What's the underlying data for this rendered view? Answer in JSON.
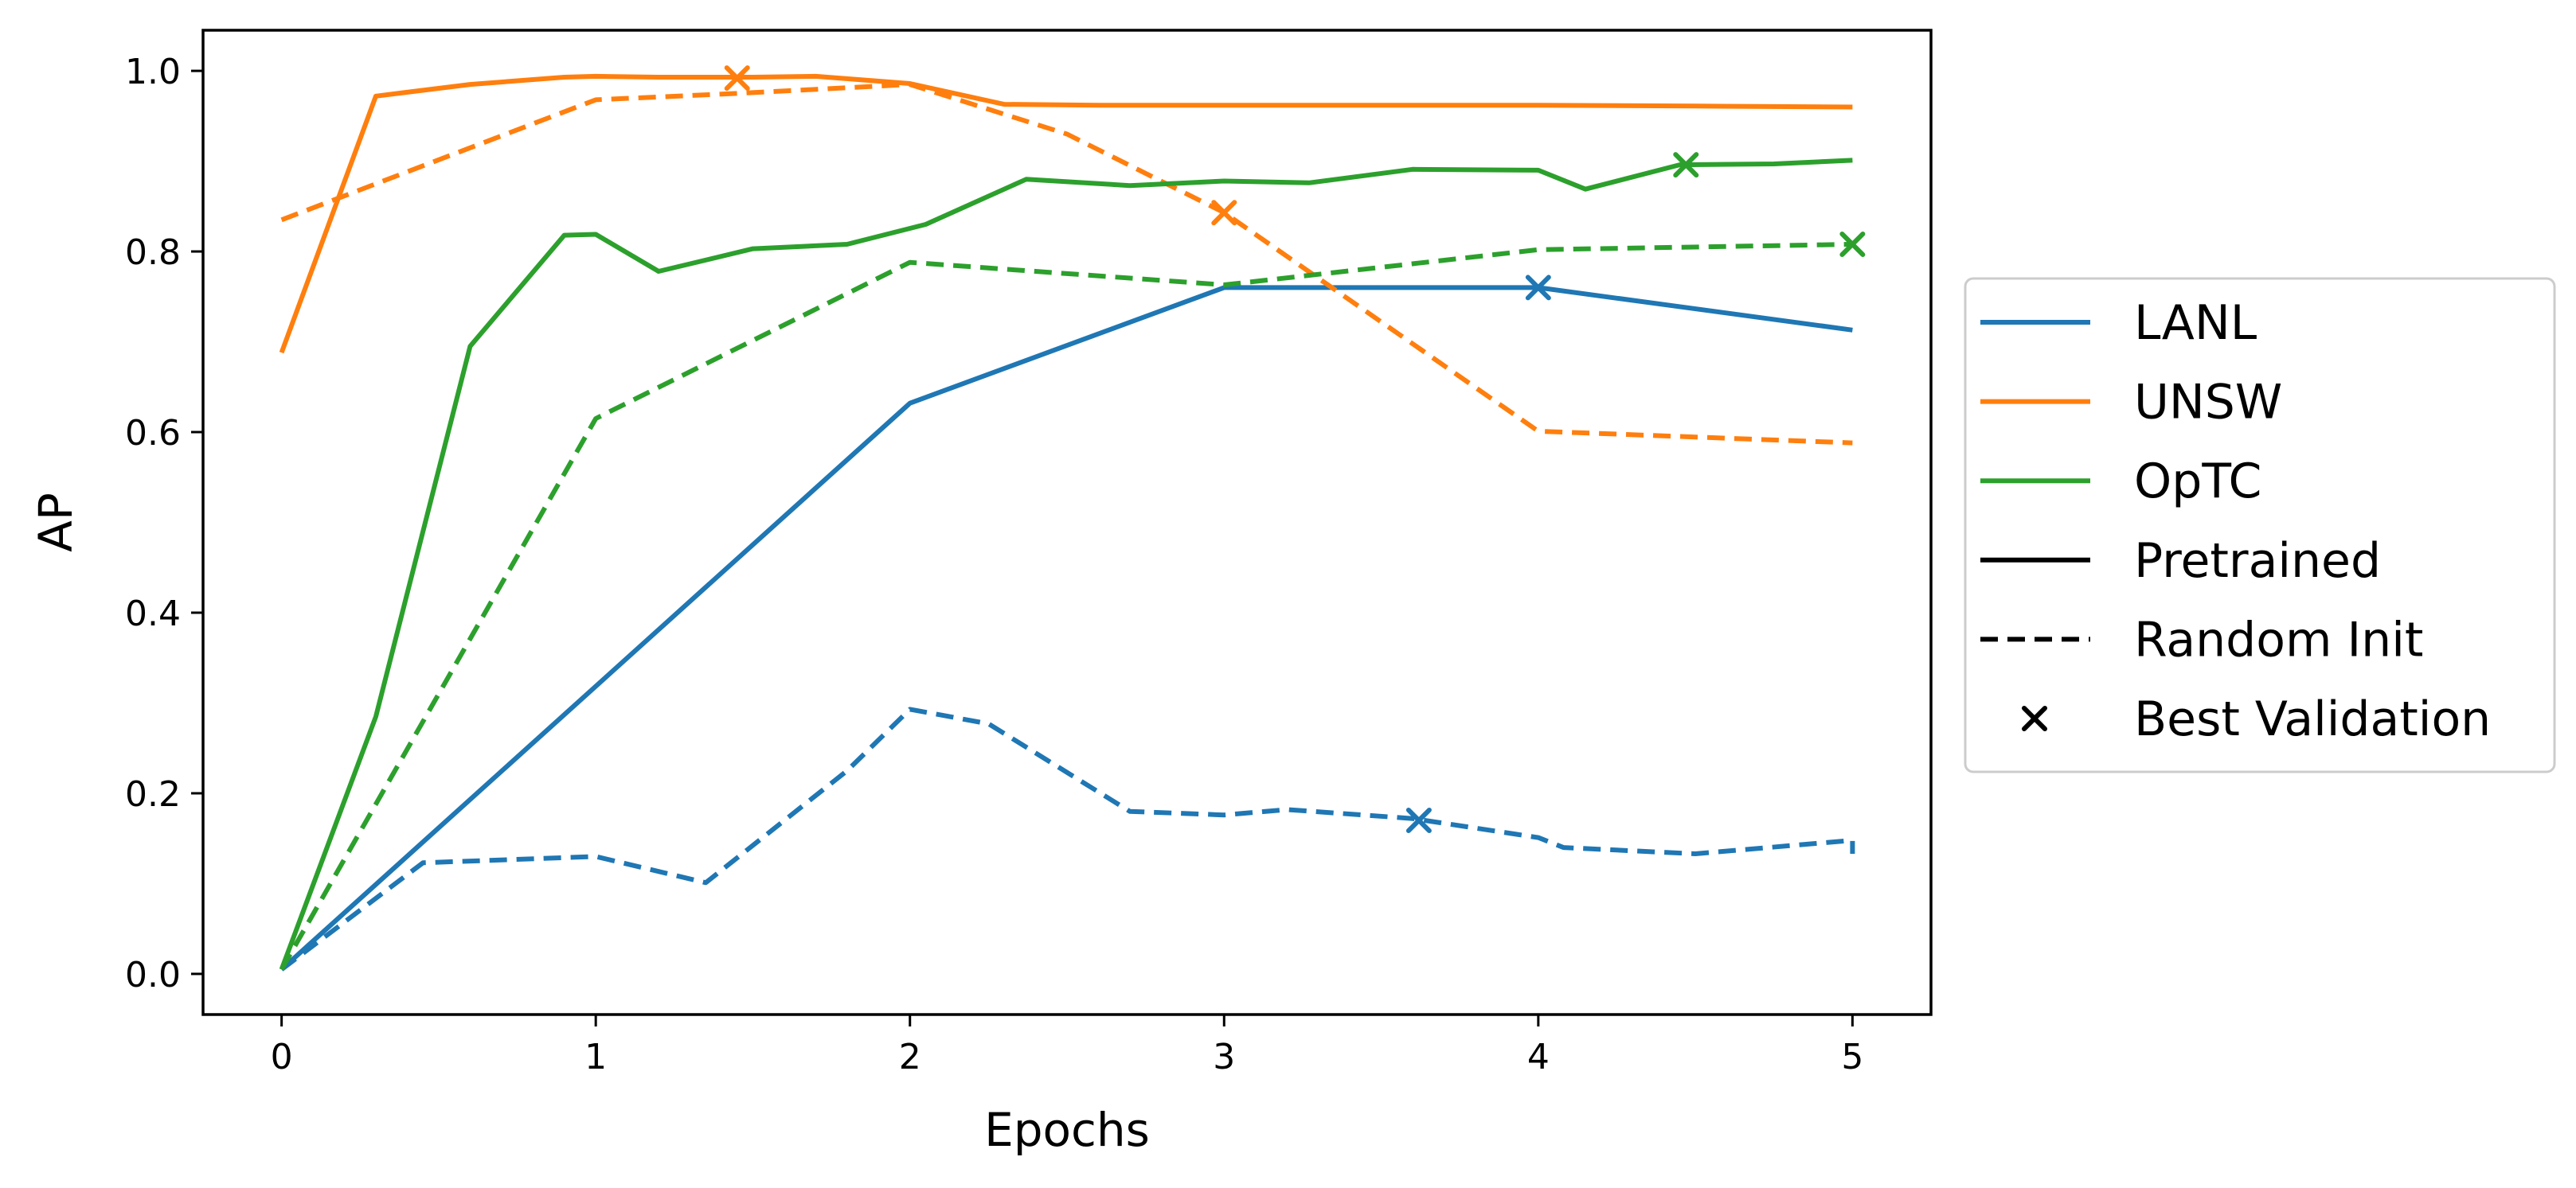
{
  "chart_data": {
    "type": "line",
    "xlabel": "Epochs",
    "ylabel": "AP",
    "xlim": [
      -0.25,
      5.25
    ],
    "ylim": [
      -0.045,
      1.045
    ],
    "x_ticks": [
      0,
      1,
      2,
      3,
      4,
      5
    ],
    "x_tick_labels": [
      "0",
      "1",
      "2",
      "3",
      "4",
      "5"
    ],
    "y_ticks": [
      0.0,
      0.2,
      0.4,
      0.6,
      0.8,
      1.0
    ],
    "y_tick_labels": [
      "0.0",
      "0.2",
      "0.4",
      "0.6",
      "0.8",
      "1.0"
    ],
    "grid": false,
    "legend_position": "outside-right",
    "series": [
      {
        "name": "LANL",
        "style": "solid",
        "color": "#1f77b4",
        "x": [
          0,
          2,
          3,
          4,
          5
        ],
        "y": [
          0.005,
          0.632,
          0.76,
          0.76,
          0.713
        ],
        "best": [
          4.0,
          0.76
        ]
      },
      {
        "style": "dashed",
        "color": "#1f77b4",
        "x": [
          0,
          0.45,
          1.0,
          1.35,
          1.8,
          2.0,
          2.25,
          2.7,
          3.0,
          3.2,
          3.6,
          4.0,
          4.08,
          4.5,
          5.0,
          5.0
        ],
        "y": [
          0.005,
          0.123,
          0.13,
          0.101,
          0.225,
          0.293,
          0.277,
          0.18,
          0.176,
          0.182,
          0.172,
          0.151,
          0.14,
          0.133,
          0.148,
          0.133
        ],
        "best": [
          3.62,
          0.17
        ]
      },
      {
        "name": "UNSW",
        "style": "solid",
        "color": "#ff7f0e",
        "x": [
          0,
          0.3,
          0.6,
          0.9,
          1.0,
          1.2,
          1.5,
          1.7,
          2.0,
          2.3,
          2.6,
          3.0,
          3.5,
          4.0,
          4.5,
          5.0
        ],
        "y": [
          0.688,
          0.972,
          0.985,
          0.993,
          0.994,
          0.993,
          0.993,
          0.994,
          0.986,
          0.963,
          0.962,
          0.962,
          0.962,
          0.962,
          0.961,
          0.96
        ],
        "best": [
          1.45,
          0.992
        ]
      },
      {
        "style": "dashed",
        "color": "#ff7f0e",
        "x": [
          0,
          1.0,
          1.45,
          2.0,
          2.5,
          3.0,
          4.0,
          5.0
        ],
        "y": [
          0.835,
          0.968,
          0.975,
          0.985,
          0.93,
          0.843,
          0.601,
          0.588
        ],
        "best": [
          3.0,
          0.843
        ]
      },
      {
        "name": "OpTC",
        "style": "solid",
        "color": "#2ca02c",
        "x": [
          0,
          0.3,
          0.6,
          0.9,
          1.0,
          1.2,
          1.5,
          1.8,
          2.05,
          2.37,
          2.7,
          3.0,
          3.27,
          3.6,
          4.0,
          4.15,
          4.45,
          4.75,
          5.0
        ],
        "y": [
          0.005,
          0.285,
          0.695,
          0.818,
          0.819,
          0.778,
          0.803,
          0.808,
          0.83,
          0.88,
          0.873,
          0.878,
          0.876,
          0.891,
          0.89,
          0.869,
          0.896,
          0.897,
          0.901
        ],
        "best": [
          4.47,
          0.896
        ]
      },
      {
        "style": "dashed",
        "color": "#2ca02c",
        "x": [
          0,
          1.0,
          2.0,
          3.0,
          4.0,
          5.0
        ],
        "y": [
          0.005,
          0.615,
          0.788,
          0.763,
          0.802,
          0.808
        ],
        "best": [
          5.0,
          0.808
        ]
      }
    ],
    "legend": [
      {
        "label": "LANL",
        "kind": "line",
        "style": "solid",
        "color": "#1f77b4"
      },
      {
        "label": "UNSW",
        "kind": "line",
        "style": "solid",
        "color": "#ff7f0e"
      },
      {
        "label": "OpTC",
        "kind": "line",
        "style": "solid",
        "color": "#2ca02c"
      },
      {
        "label": "Pretrained",
        "kind": "line",
        "style": "solid",
        "color": "#000000"
      },
      {
        "label": "Random Init",
        "kind": "line",
        "style": "dashed",
        "color": "#000000"
      },
      {
        "label": "Best Validation",
        "kind": "marker",
        "color": "#000000"
      }
    ]
  }
}
